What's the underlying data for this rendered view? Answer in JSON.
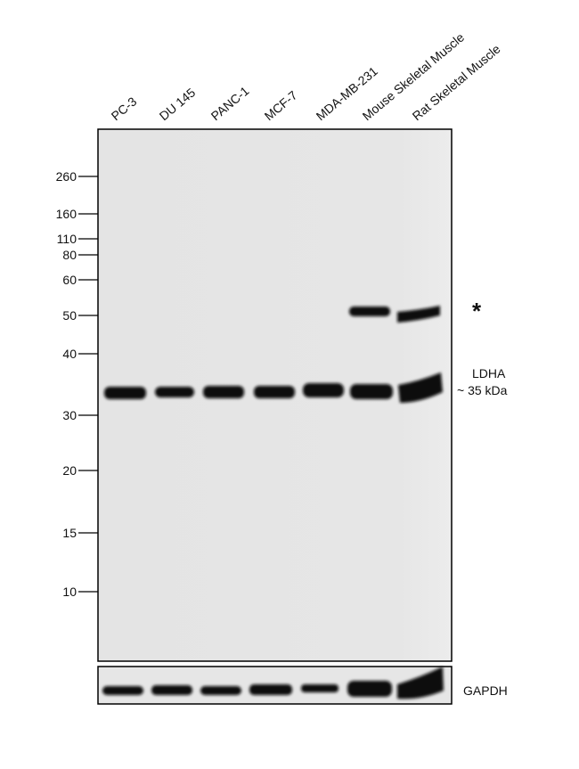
{
  "lanes": [
    "PC-3",
    "DU 145",
    "PANC-1",
    "MCF-7",
    "MDA-MB-231",
    "Mouse Skeletal Muscle",
    "Rat Skeletal Muscle"
  ],
  "markers": [
    "260",
    "160",
    "110",
    "80",
    "60",
    "50",
    "40",
    "30",
    "20",
    "15",
    "10"
  ],
  "annotations": {
    "asterisk": "*",
    "target": "LDHA",
    "size": "~ 35 kDa",
    "loading_control": "GAPDH"
  }
}
